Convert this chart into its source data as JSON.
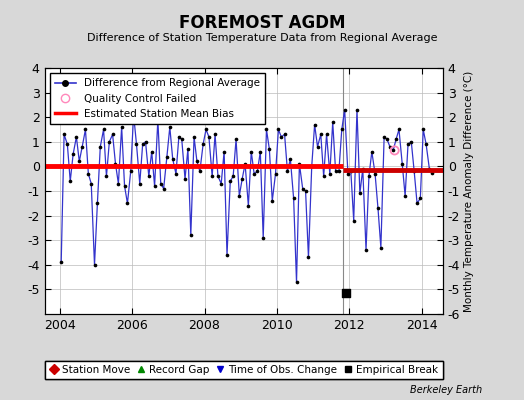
{
  "title": "FOREMOST AGDM",
  "subtitle": "Difference of Station Temperature Data from Regional Average",
  "ylabel": "Monthly Temperature Anomaly Difference (°C)",
  "xlabel_years": [
    2004,
    2006,
    2008,
    2010,
    2012,
    2014
  ],
  "ylim": [
    -6,
    4
  ],
  "yticks_left": [
    -5,
    -4,
    -3,
    -2,
    -1,
    0,
    1,
    2,
    3,
    4
  ],
  "yticks_right": [
    -6,
    -5,
    -4,
    -3,
    -2,
    -1,
    0,
    1,
    2,
    3,
    4
  ],
  "xmin": 2003.58,
  "xmax": 2014.58,
  "background_color": "#d8d8d8",
  "plot_bg_color": "#ffffff",
  "line_color": "#3333cc",
  "marker_color": "#000000",
  "bias_color_1": "#ff0000",
  "bias_color_2": "#cc0000",
  "bias_y1": 0.02,
  "bias_y2": -0.15,
  "bias_x1_start": 2003.58,
  "bias_x1_end": 2011.83,
  "bias_x2_start": 2011.83,
  "bias_x2_end": 2014.58,
  "vline_x": 2011.83,
  "empirical_break_x": 2011.92,
  "empirical_break_y": -5.15,
  "qc_fail_x": 2013.25,
  "qc_fail_y": 0.65,
  "watermark": "Berkeley Earth",
  "data_x": [
    2004.04,
    2004.12,
    2004.21,
    2004.29,
    2004.37,
    2004.46,
    2004.54,
    2004.62,
    2004.71,
    2004.79,
    2004.87,
    2004.96,
    2005.04,
    2005.12,
    2005.21,
    2005.29,
    2005.37,
    2005.46,
    2005.54,
    2005.62,
    2005.71,
    2005.79,
    2005.87,
    2005.96,
    2006.04,
    2006.12,
    2006.21,
    2006.29,
    2006.37,
    2006.46,
    2006.54,
    2006.62,
    2006.71,
    2006.79,
    2006.87,
    2006.96,
    2007.04,
    2007.12,
    2007.21,
    2007.29,
    2007.37,
    2007.46,
    2007.54,
    2007.62,
    2007.71,
    2007.79,
    2007.87,
    2007.96,
    2008.04,
    2008.12,
    2008.21,
    2008.29,
    2008.37,
    2008.46,
    2008.54,
    2008.62,
    2008.71,
    2008.79,
    2008.87,
    2008.96,
    2009.04,
    2009.12,
    2009.21,
    2009.29,
    2009.37,
    2009.46,
    2009.54,
    2009.62,
    2009.71,
    2009.79,
    2009.87,
    2009.96,
    2010.04,
    2010.12,
    2010.21,
    2010.29,
    2010.37,
    2010.46,
    2010.54,
    2010.62,
    2010.71,
    2010.79,
    2010.87,
    2010.96,
    2011.04,
    2011.12,
    2011.21,
    2011.29,
    2011.37,
    2011.46,
    2011.54,
    2011.62,
    2011.71,
    2011.79,
    2011.87,
    2011.96,
    2012.04,
    2012.12,
    2012.21,
    2012.29,
    2012.37,
    2012.46,
    2012.54,
    2012.62,
    2012.71,
    2012.79,
    2012.87,
    2012.96,
    2013.04,
    2013.12,
    2013.21,
    2013.29,
    2013.37,
    2013.46,
    2013.54,
    2013.62,
    2013.71,
    2013.79,
    2013.87,
    2013.96,
    2014.04,
    2014.12,
    2014.21,
    2014.29
  ],
  "data_y": [
    -3.9,
    1.3,
    0.9,
    -0.6,
    0.5,
    1.2,
    0.2,
    0.8,
    1.5,
    -0.3,
    -0.7,
    -4.0,
    -1.5,
    0.8,
    1.5,
    -0.4,
    1.0,
    1.3,
    0.1,
    -0.7,
    1.6,
    -0.8,
    -1.5,
    -0.2,
    2.1,
    0.9,
    -0.7,
    0.9,
    1.0,
    -0.4,
    0.6,
    -0.8,
    1.9,
    -0.7,
    -0.9,
    0.4,
    1.6,
    0.3,
    -0.3,
    1.2,
    1.1,
    -0.5,
    0.7,
    -2.8,
    1.2,
    0.2,
    -0.2,
    0.9,
    1.5,
    1.2,
    -0.4,
    1.3,
    -0.4,
    -0.7,
    0.6,
    -3.6,
    -0.6,
    -0.4,
    1.1,
    -1.2,
    -0.5,
    0.1,
    -1.6,
    0.6,
    -0.3,
    -0.2,
    0.6,
    -2.9,
    1.5,
    0.7,
    -1.4,
    -0.3,
    1.5,
    1.2,
    1.3,
    -0.2,
    0.3,
    -1.3,
    -4.7,
    0.1,
    -0.9,
    -1.0,
    -3.7,
    0.0,
    1.7,
    0.8,
    1.3,
    -0.4,
    1.3,
    -0.3,
    1.8,
    -0.2,
    -0.2,
    1.5,
    2.3,
    -0.3,
    -0.2,
    -2.2,
    2.3,
    -1.1,
    -0.1,
    -3.4,
    -0.4,
    0.6,
    -0.3,
    -1.7,
    -3.3,
    1.2,
    1.1,
    0.8,
    0.65,
    1.1,
    1.5,
    0.1,
    -1.2,
    0.9,
    1.0,
    -0.2,
    -1.5,
    -1.3,
    1.5,
    0.9,
    -0.1,
    -0.25
  ]
}
